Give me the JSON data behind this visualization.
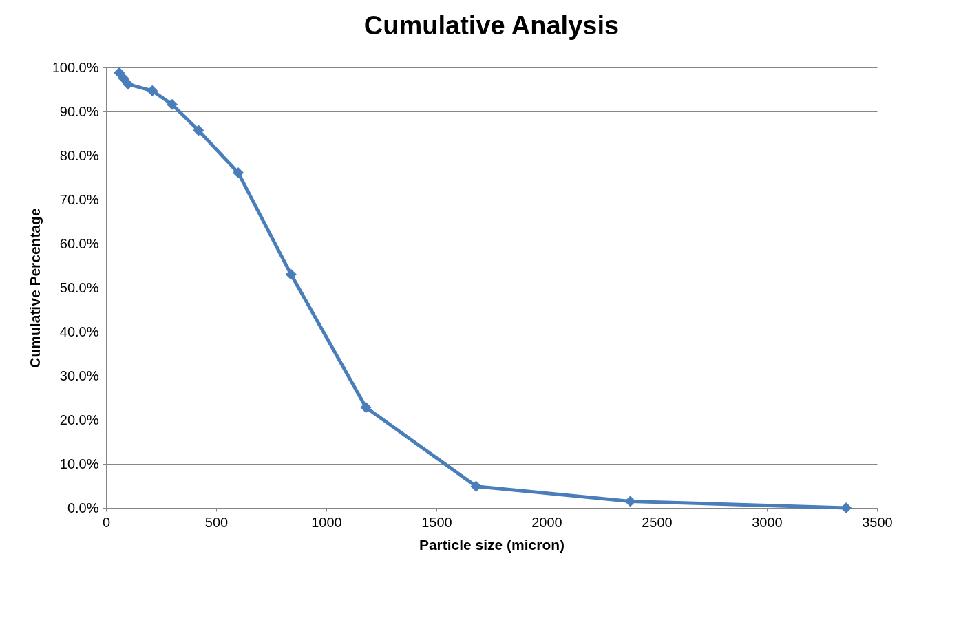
{
  "chart_data": {
    "type": "line",
    "title": "Cumulative Analysis",
    "xlabel": "Particle size (micron)",
    "ylabel": "Cumulative Percentage",
    "x": [
      60,
      80,
      100,
      210,
      300,
      420,
      600,
      840,
      1180,
      1680,
      2380,
      3360
    ],
    "series": [
      {
        "color": "#4a7ebb",
        "values": [
          98.8,
          97.5,
          96.2,
          94.7,
          91.6,
          85.7,
          76.1,
          53.0,
          22.8,
          4.9,
          1.5,
          0.0
        ]
      }
    ],
    "xlim": [
      0,
      3500
    ],
    "xticks": [
      0,
      500,
      1000,
      1500,
      2000,
      2500,
      3000,
      3500
    ],
    "ylim": [
      0,
      100
    ],
    "yticks": [
      {
        "value": 0,
        "label": "0.0%"
      },
      {
        "value": 10,
        "label": "10.0%"
      },
      {
        "value": 20,
        "label": "20.0%"
      },
      {
        "value": 30,
        "label": "30.0%"
      },
      {
        "value": 40,
        "label": "40.0%"
      },
      {
        "value": 50,
        "label": "50.0%"
      },
      {
        "value": 60,
        "label": "60.0%"
      },
      {
        "value": 70,
        "label": "70.0%"
      },
      {
        "value": 80,
        "label": "80.0%"
      },
      {
        "value": 90,
        "label": "90.0%"
      },
      {
        "value": 100,
        "label": "100.0%"
      }
    ],
    "grid": "y",
    "marker": "diamond",
    "line_style": "solid"
  }
}
